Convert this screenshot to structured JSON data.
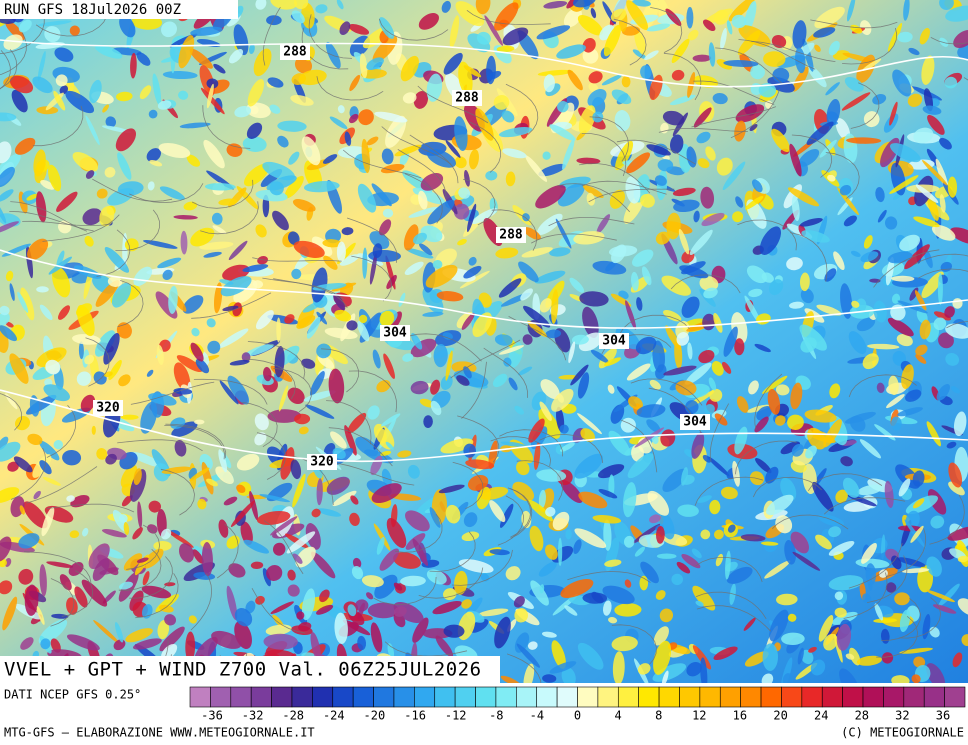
{
  "header": {
    "run": "RUN GFS 18Jul2026 00Z"
  },
  "map": {
    "contour_labels": [
      288,
      288,
      288,
      304,
      304,
      304,
      320,
      320
    ],
    "title": "VVEL + GPT + WIND Z700 Val. 06Z25JUL2026"
  },
  "legend": {
    "source": "DATI NCEP GFS 0.25°",
    "ticks": [
      -36,
      -32,
      -28,
      -24,
      -20,
      -16,
      -12,
      -8,
      -4,
      0,
      4,
      8,
      12,
      16,
      20,
      24,
      28,
      32,
      36
    ]
  },
  "footer": {
    "left": "MTG-GFS — ELABORAZIONE WWW.METEOGIORNALE.IT",
    "right": "(C) METEOGIORNALE"
  }
}
